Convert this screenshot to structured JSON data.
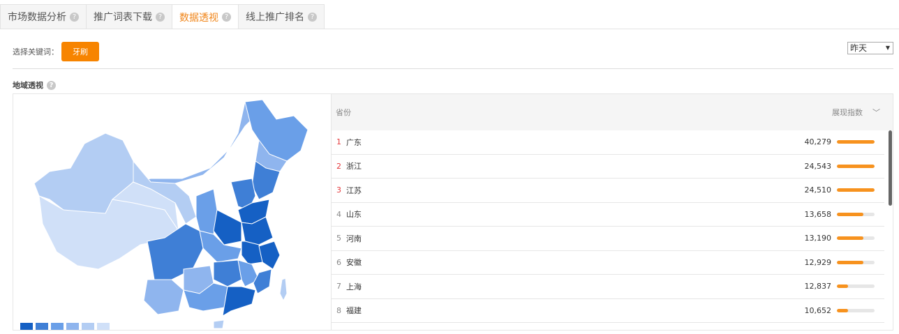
{
  "tabs": [
    {
      "label": "市场数据分析",
      "active": false
    },
    {
      "label": "推广词表下载",
      "active": false
    },
    {
      "label": "数据透视",
      "active": true
    },
    {
      "label": "线上推广排名",
      "active": false
    }
  ],
  "keyword": {
    "label": "选择关键词：",
    "value": "牙刷"
  },
  "date_select": {
    "value": "昨天"
  },
  "section": {
    "title": "地域透视"
  },
  "table": {
    "col_province": "省份",
    "col_index": "展现指数",
    "rows": [
      {
        "rank": "1",
        "province": "广东",
        "value": "40,279",
        "bar": 100
      },
      {
        "rank": "2",
        "province": "浙江",
        "value": "24,543",
        "bar": 100
      },
      {
        "rank": "3",
        "province": "江苏",
        "value": "24,510",
        "bar": 100
      },
      {
        "rank": "4",
        "province": "山东",
        "value": "13,658",
        "bar": 70
      },
      {
        "rank": "5",
        "province": "河南",
        "value": "13,190",
        "bar": 70
      },
      {
        "rank": "6",
        "province": "安徽",
        "value": "12,929",
        "bar": 70
      },
      {
        "rank": "7",
        "province": "上海",
        "value": "12,837",
        "bar": 30
      },
      {
        "rank": "8",
        "province": "福建",
        "value": "10,652",
        "bar": 30
      }
    ]
  },
  "colors": {
    "accent": "#f78400",
    "legend": [
      "#1560c4",
      "#3f7fd6",
      "#6a9fe8",
      "#8fb5ee",
      "#b3cdf3",
      "#d0e0f8"
    ]
  }
}
